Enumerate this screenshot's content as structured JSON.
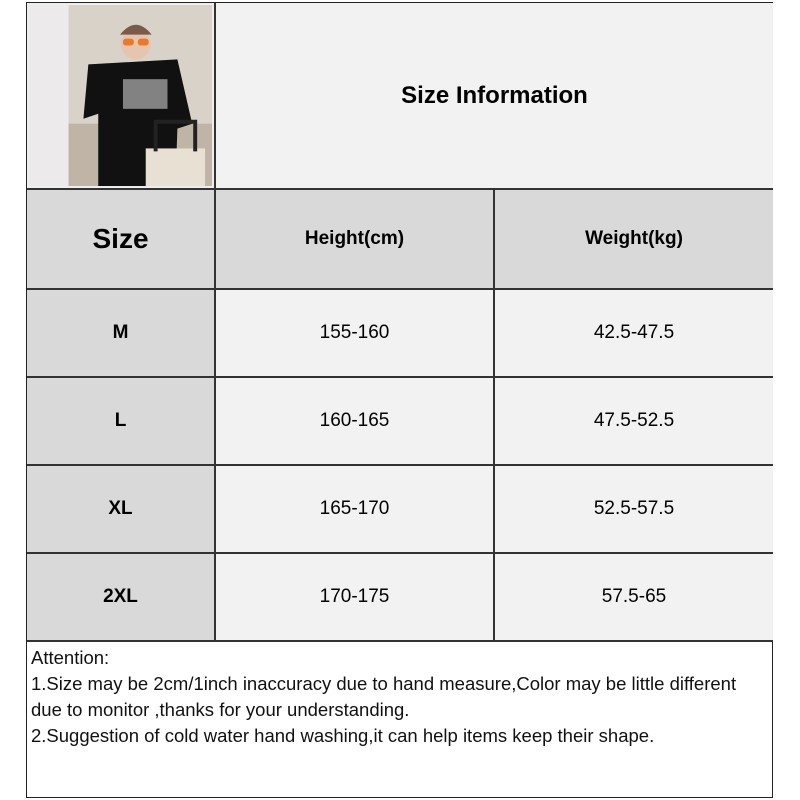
{
  "title": "Size Information",
  "headers": [
    "Size",
    "Height(cm)",
    "Weight(kg)"
  ],
  "rows": [
    {
      "size": "M",
      "height": "155-160",
      "weight": "42.5-47.5"
    },
    {
      "size": "L",
      "height": "160-165",
      "weight": "47.5-52.5"
    },
    {
      "size": "XL",
      "height": "165-170",
      "weight": "52.5-57.5"
    },
    {
      "size": "2XL",
      "height": "170-175",
      "weight": "57.5-65"
    }
  ],
  "notes": {
    "heading": "Attention:",
    "line1": "1.Size may be 2cm/1inch inaccuracy due to hand measure,Color may be little different due to monitor ,thanks for your understanding.",
    "line2": "2.Suggestion of cold water hand washing,it can help items keep their shape."
  },
  "colors": {
    "header_bg": "#d9d9d9",
    "cell_bg": "#f2f2f2",
    "border": "#333333"
  }
}
